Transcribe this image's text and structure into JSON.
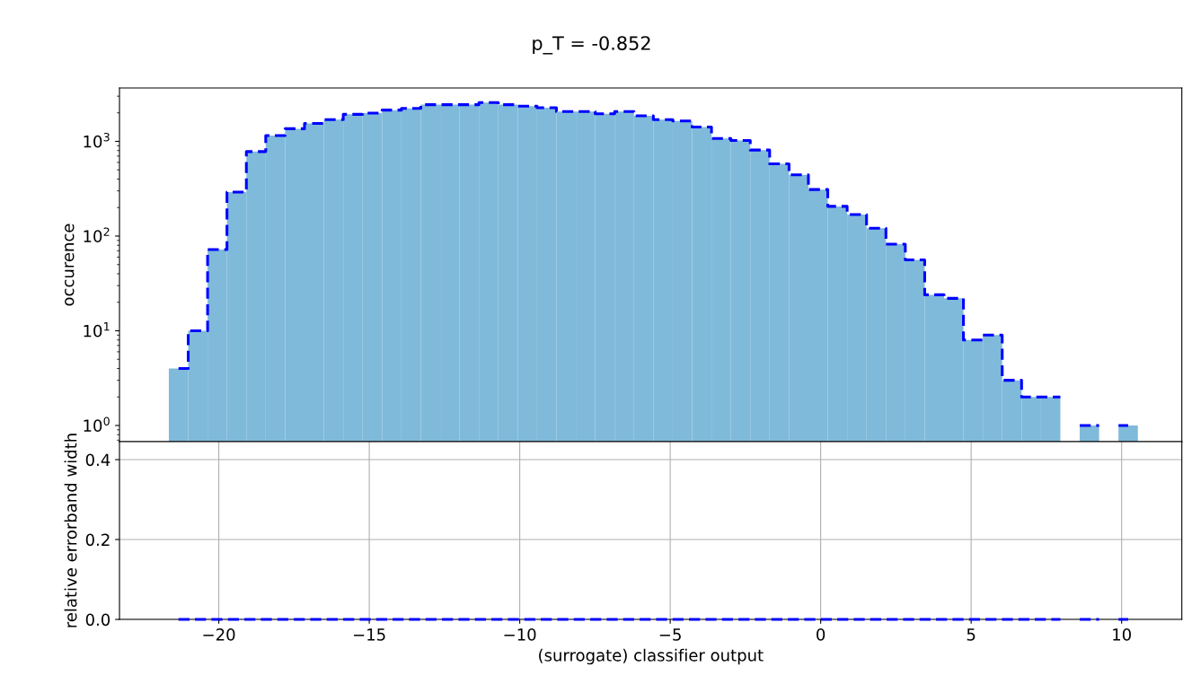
{
  "chart_data": [
    {
      "type": "histogram",
      "title": "p_T = -0.852",
      "ylabel": "occurence",
      "log": "y",
      "grid": false,
      "tick_labels": "y",
      "bins": [
        -21.66,
        -21.016,
        -20.372,
        -19.728,
        -19.084,
        -18.44,
        -17.796,
        -17.152,
        -16.508,
        -15.864,
        -15.22,
        -14.576,
        -13.932,
        -13.288,
        -12.644,
        -12.0,
        -11.356,
        -10.712,
        -10.068,
        -9.424,
        -8.78,
        -8.136,
        -7.492,
        -6.848,
        -6.204,
        -5.56,
        -4.916,
        -4.272,
        -3.628,
        -2.984,
        -2.34,
        -1.696,
        -1.052,
        -0.408,
        0.236,
        0.88,
        1.524,
        2.168,
        2.812,
        3.456,
        4.1,
        4.744,
        5.388,
        6.032,
        6.676,
        7.32,
        7.964,
        8.608,
        9.252,
        9.896,
        10.54
      ],
      "series": [
        {
          "type": "histogram",
          "color": "#7fbadb",
          "values": [
            4,
            10,
            72,
            291,
            780,
            1150,
            1360,
            1545,
            1700,
            1930,
            1990,
            2140,
            2230,
            2440,
            2440,
            2440,
            2570,
            2440,
            2350,
            2270,
            2070,
            2070,
            1960,
            2070,
            1860,
            1700,
            1640,
            1420,
            1075,
            1020,
            810,
            580,
            444,
            310,
            206,
            169,
            121,
            82,
            56,
            24,
            22,
            8,
            9,
            3,
            2,
            2,
            null,
            1,
            null,
            1
          ]
        },
        {
          "type": "step",
          "color": "#0000ff",
          "line_style": "dashed",
          "x": [
            -21.338,
            -20.694,
            -20.05,
            -19.406,
            -18.762,
            -18.118,
            -17.474,
            -16.83,
            -16.186,
            -15.542,
            -14.898,
            -14.254,
            -13.61,
            -12.966,
            -12.322,
            -11.678,
            -11.034,
            -10.39,
            -9.746,
            -9.102,
            -8.458,
            -7.814,
            -7.17,
            -6.526,
            -5.882,
            -5.238,
            -4.594,
            -3.95,
            -3.306,
            -2.662,
            -2.018,
            -1.374,
            -0.73,
            -0.086,
            0.558,
            1.202,
            1.846,
            2.49,
            3.134,
            3.778,
            4.422,
            5.066,
            5.71,
            6.354,
            6.998,
            7.642,
            8.286,
            8.93,
            9.574,
            10.218
          ],
          "values": [
            4,
            10,
            72,
            291,
            780,
            1150,
            1360,
            1545,
            1700,
            1930,
            1990,
            2140,
            2230,
            2440,
            2440,
            2440,
            2570,
            2440,
            2350,
            2270,
            2070,
            2070,
            1960,
            2070,
            1860,
            1700,
            1640,
            1420,
            1075,
            1020,
            810,
            580,
            444,
            310,
            206,
            169,
            121,
            82,
            56,
            24,
            22,
            8,
            9,
            3,
            2,
            2,
            null,
            1,
            null,
            1
          ]
        }
      ],
      "xlim": [
        -23.3,
        12.0
      ],
      "xticks": [
        -20,
        -15,
        -10,
        -5,
        0,
        5,
        10
      ],
      "ylim": [
        0.675,
        3660
      ],
      "yticks": [
        {
          "value": 1,
          "label": "10$^{0}$"
        },
        {
          "value": 10,
          "label": "10$^{1}$"
        },
        {
          "value": 100,
          "label": "10$^{2}$"
        },
        {
          "value": 1000,
          "label": "10$^{3}$"
        }
      ]
    },
    {
      "type": "step",
      "xlabel": "(surrogate) classifier output",
      "ylabel": "relative errorband width",
      "grid": true,
      "series": [
        {
          "type": "step",
          "color": "#0000ff",
          "line_style": "dashed",
          "x": [
            -21.338,
            -20.694,
            -20.05,
            -19.406,
            -18.762,
            -18.118,
            -17.474,
            -16.83,
            -16.186,
            -15.542,
            -14.898,
            -14.254,
            -13.61,
            -12.966,
            -12.322,
            -11.678,
            -11.034,
            -10.39,
            -9.746,
            -9.102,
            -8.458,
            -7.814,
            -7.17,
            -6.526,
            -5.882,
            -5.238,
            -4.594,
            -3.95,
            -3.306,
            -2.662,
            -2.018,
            -1.374,
            -0.73,
            -0.086,
            0.558,
            1.202,
            1.846,
            2.49,
            3.134,
            3.778,
            4.422,
            5.066,
            5.71,
            6.354,
            6.998,
            7.642,
            8.286,
            8.93,
            9.574,
            10.218
          ],
          "values": [
            0,
            0,
            0,
            0,
            0,
            0,
            0,
            0,
            0,
            0,
            0,
            0,
            0,
            0,
            0,
            0,
            0,
            0,
            0,
            0,
            0,
            0,
            0,
            0,
            0,
            0,
            0,
            0,
            0,
            0,
            0,
            0,
            0,
            0,
            0,
            0,
            0,
            0,
            0,
            0,
            0,
            0,
            0,
            0,
            0,
            0,
            null,
            0,
            null,
            0
          ]
        }
      ],
      "xlim": [
        -23.3,
        12.0
      ],
      "xticks": [
        -20,
        -15,
        -10,
        -5,
        0,
        5,
        10
      ],
      "ylim": [
        0,
        0.445
      ],
      "yticks": [
        {
          "value": 0,
          "label": "0.0"
        },
        {
          "value": 0.2,
          "label": "0.2"
        },
        {
          "value": 0.4,
          "label": "0.4"
        }
      ]
    }
  ]
}
